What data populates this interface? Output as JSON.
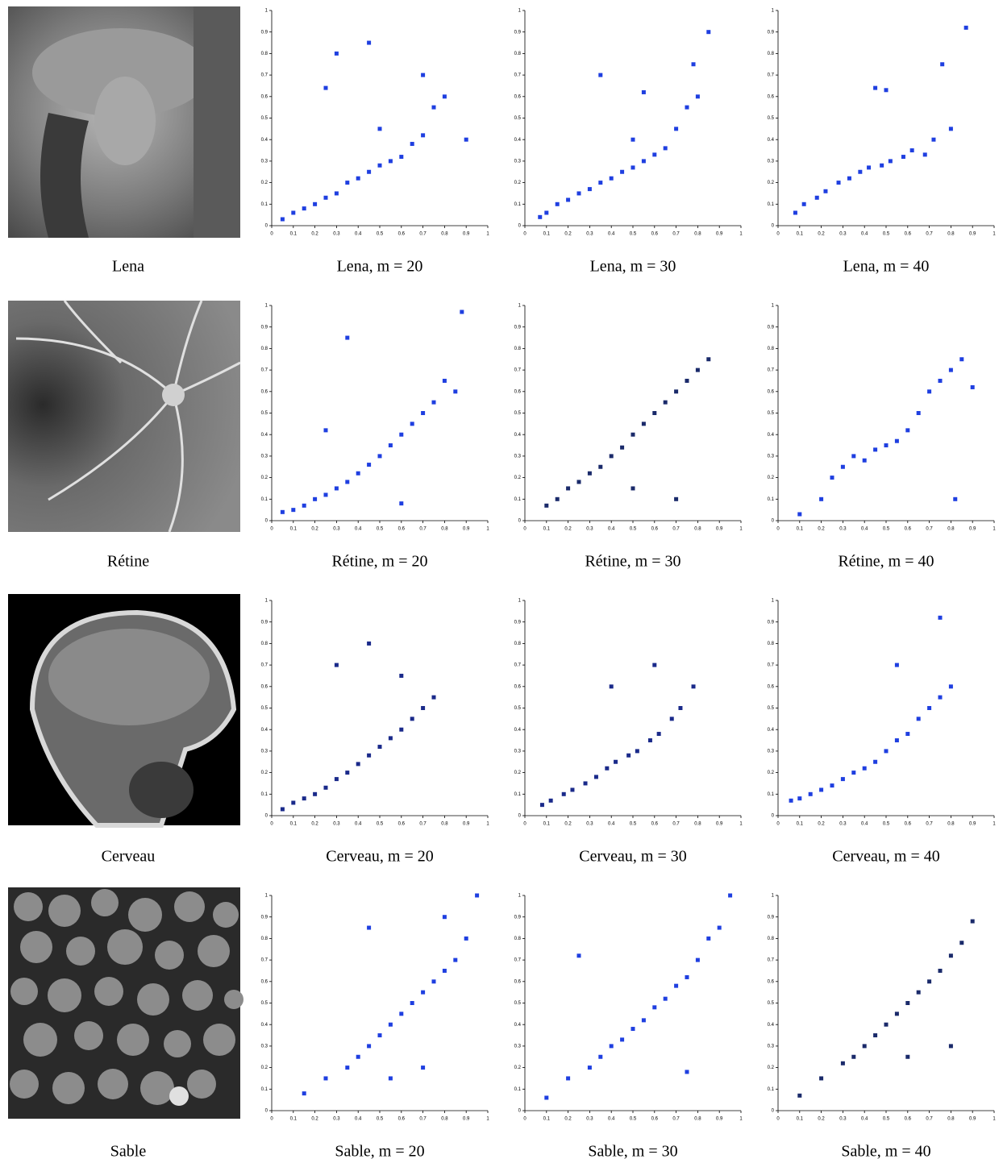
{
  "axes": {
    "xlim": [
      0,
      1
    ],
    "ylim": [
      0,
      1
    ],
    "xticks": [
      0,
      0.1,
      0.2,
      0.3,
      0.4,
      0.5,
      0.6,
      0.7,
      0.8,
      0.9,
      1
    ],
    "yticks": [
      0,
      0.1,
      0.2,
      0.3,
      0.4,
      0.5,
      0.6,
      0.7,
      0.8,
      0.9,
      1
    ]
  },
  "rows": [
    {
      "image_caption": "Lena",
      "plots": [
        {
          "type": "scatter",
          "caption": "Lena, m = 20",
          "color": "#1f3fe0",
          "x": [
            0.05,
            0.1,
            0.15,
            0.2,
            0.25,
            0.3,
            0.35,
            0.4,
            0.45,
            0.5,
            0.55,
            0.6,
            0.65,
            0.7,
            0.75,
            0.8,
            0.3,
            0.5,
            0.7,
            0.45,
            0.9,
            0.25
          ],
          "values": [
            0.03,
            0.06,
            0.08,
            0.1,
            0.13,
            0.15,
            0.2,
            0.22,
            0.25,
            0.28,
            0.3,
            0.32,
            0.38,
            0.42,
            0.55,
            0.6,
            0.8,
            0.45,
            0.7,
            0.85,
            0.4,
            0.64
          ]
        },
        {
          "type": "scatter",
          "caption": "Lena, m = 30",
          "color": "#1f3fe0",
          "x": [
            0.07,
            0.1,
            0.15,
            0.2,
            0.25,
            0.3,
            0.35,
            0.4,
            0.45,
            0.5,
            0.55,
            0.6,
            0.65,
            0.7,
            0.75,
            0.8,
            0.35,
            0.55,
            0.78,
            0.85,
            0.5
          ],
          "values": [
            0.04,
            0.06,
            0.1,
            0.12,
            0.15,
            0.17,
            0.2,
            0.22,
            0.25,
            0.27,
            0.3,
            0.33,
            0.36,
            0.45,
            0.55,
            0.6,
            0.7,
            0.62,
            0.75,
            0.9,
            0.4
          ]
        },
        {
          "type": "scatter",
          "caption": "Lena, m = 40",
          "color": "#1f3fe0",
          "x": [
            0.08,
            0.12,
            0.18,
            0.22,
            0.28,
            0.33,
            0.38,
            0.42,
            0.48,
            0.52,
            0.58,
            0.62,
            0.68,
            0.72,
            0.76,
            0.8,
            0.45,
            0.5,
            0.87
          ],
          "values": [
            0.06,
            0.1,
            0.13,
            0.16,
            0.2,
            0.22,
            0.25,
            0.27,
            0.28,
            0.3,
            0.32,
            0.35,
            0.33,
            0.4,
            0.75,
            0.45,
            0.64,
            0.63,
            0.92
          ]
        }
      ]
    },
    {
      "image_caption": "Rétine",
      "plots": [
        {
          "type": "scatter",
          "caption": "Rétine, m = 20",
          "color": "#1f3fe0",
          "x": [
            0.05,
            0.1,
            0.15,
            0.2,
            0.25,
            0.3,
            0.35,
            0.4,
            0.45,
            0.5,
            0.55,
            0.6,
            0.65,
            0.7,
            0.75,
            0.8,
            0.85,
            0.25,
            0.35,
            0.6,
            0.88
          ],
          "values": [
            0.04,
            0.05,
            0.07,
            0.1,
            0.12,
            0.15,
            0.18,
            0.22,
            0.26,
            0.3,
            0.35,
            0.4,
            0.45,
            0.5,
            0.55,
            0.65,
            0.6,
            0.42,
            0.85,
            0.08,
            0.97
          ]
        },
        {
          "type": "scatter",
          "caption": "Rétine, m = 30",
          "color": "#1a2a6a",
          "x": [
            0.1,
            0.15,
            0.2,
            0.25,
            0.3,
            0.35,
            0.4,
            0.45,
            0.5,
            0.55,
            0.6,
            0.65,
            0.7,
            0.75,
            0.8,
            0.85,
            0.5,
            0.7
          ],
          "values": [
            0.07,
            0.1,
            0.15,
            0.18,
            0.22,
            0.25,
            0.3,
            0.34,
            0.4,
            0.45,
            0.5,
            0.55,
            0.6,
            0.65,
            0.7,
            0.75,
            0.15,
            0.1
          ]
        },
        {
          "type": "scatter",
          "caption": "Rétine, m = 40",
          "color": "#1f3fe0",
          "x": [
            0.1,
            0.2,
            0.25,
            0.3,
            0.35,
            0.4,
            0.45,
            0.5,
            0.55,
            0.6,
            0.65,
            0.7,
            0.75,
            0.8,
            0.82,
            0.85,
            0.9
          ],
          "values": [
            0.03,
            0.1,
            0.2,
            0.25,
            0.3,
            0.28,
            0.33,
            0.35,
            0.37,
            0.42,
            0.5,
            0.6,
            0.65,
            0.7,
            0.1,
            0.75,
            0.62
          ]
        }
      ]
    },
    {
      "image_caption": "Cerveau",
      "plots": [
        {
          "type": "scatter",
          "caption": "Cerveau, m = 20",
          "color": "#1a2a8a",
          "x": [
            0.05,
            0.1,
            0.15,
            0.2,
            0.25,
            0.3,
            0.35,
            0.4,
            0.45,
            0.5,
            0.55,
            0.6,
            0.65,
            0.7,
            0.75,
            0.3,
            0.45,
            0.6
          ],
          "values": [
            0.03,
            0.06,
            0.08,
            0.1,
            0.13,
            0.17,
            0.2,
            0.24,
            0.28,
            0.32,
            0.36,
            0.4,
            0.45,
            0.5,
            0.55,
            0.7,
            0.8,
            0.65
          ]
        },
        {
          "type": "scatter",
          "caption": "Cerveau, m = 30",
          "color": "#1a2a8a",
          "x": [
            0.08,
            0.12,
            0.18,
            0.22,
            0.28,
            0.33,
            0.38,
            0.42,
            0.48,
            0.52,
            0.58,
            0.62,
            0.68,
            0.72,
            0.78,
            0.4,
            0.6
          ],
          "values": [
            0.05,
            0.07,
            0.1,
            0.12,
            0.15,
            0.18,
            0.22,
            0.25,
            0.28,
            0.3,
            0.35,
            0.38,
            0.45,
            0.5,
            0.6,
            0.6,
            0.7
          ]
        },
        {
          "type": "scatter",
          "caption": "Cerveau, m = 40",
          "color": "#1f3fe0",
          "x": [
            0.06,
            0.1,
            0.15,
            0.2,
            0.25,
            0.3,
            0.35,
            0.4,
            0.45,
            0.5,
            0.55,
            0.6,
            0.65,
            0.7,
            0.75,
            0.8,
            0.55,
            0.75
          ],
          "values": [
            0.07,
            0.08,
            0.1,
            0.12,
            0.14,
            0.17,
            0.2,
            0.22,
            0.25,
            0.3,
            0.35,
            0.38,
            0.45,
            0.5,
            0.55,
            0.6,
            0.7,
            0.92
          ]
        }
      ]
    },
    {
      "image_caption": "Sable",
      "plots": [
        {
          "type": "scatter",
          "caption": "Sable, m = 20",
          "color": "#1f3fe0",
          "x": [
            0.15,
            0.25,
            0.35,
            0.4,
            0.45,
            0.5,
            0.55,
            0.6,
            0.65,
            0.7,
            0.75,
            0.8,
            0.85,
            0.9,
            0.45,
            0.55,
            0.7,
            0.8,
            0.95
          ],
          "values": [
            0.08,
            0.15,
            0.2,
            0.25,
            0.3,
            0.35,
            0.4,
            0.45,
            0.5,
            0.55,
            0.6,
            0.65,
            0.7,
            0.8,
            0.85,
            0.15,
            0.2,
            0.9,
            1
          ]
        },
        {
          "type": "scatter",
          "caption": "Sable, m = 30",
          "color": "#1f3fe0",
          "x": [
            0.1,
            0.2,
            0.3,
            0.35,
            0.4,
            0.45,
            0.5,
            0.55,
            0.6,
            0.65,
            0.7,
            0.75,
            0.8,
            0.85,
            0.9,
            0.25,
            0.75,
            0.95
          ],
          "values": [
            0.06,
            0.15,
            0.2,
            0.25,
            0.3,
            0.33,
            0.38,
            0.42,
            0.48,
            0.52,
            0.58,
            0.62,
            0.7,
            0.8,
            0.85,
            0.72,
            0.18,
            1
          ]
        },
        {
          "type": "scatter",
          "caption": "Sable, m = 40",
          "color": "#1a2a6a",
          "x": [
            0.1,
            0.2,
            0.3,
            0.35,
            0.4,
            0.45,
            0.5,
            0.55,
            0.6,
            0.65,
            0.7,
            0.75,
            0.8,
            0.85,
            0.9,
            0.6,
            0.8
          ],
          "values": [
            0.07,
            0.15,
            0.22,
            0.25,
            0.3,
            0.35,
            0.4,
            0.45,
            0.5,
            0.55,
            0.6,
            0.65,
            0.72,
            0.78,
            0.88,
            0.25,
            0.3
          ]
        }
      ]
    }
  ]
}
